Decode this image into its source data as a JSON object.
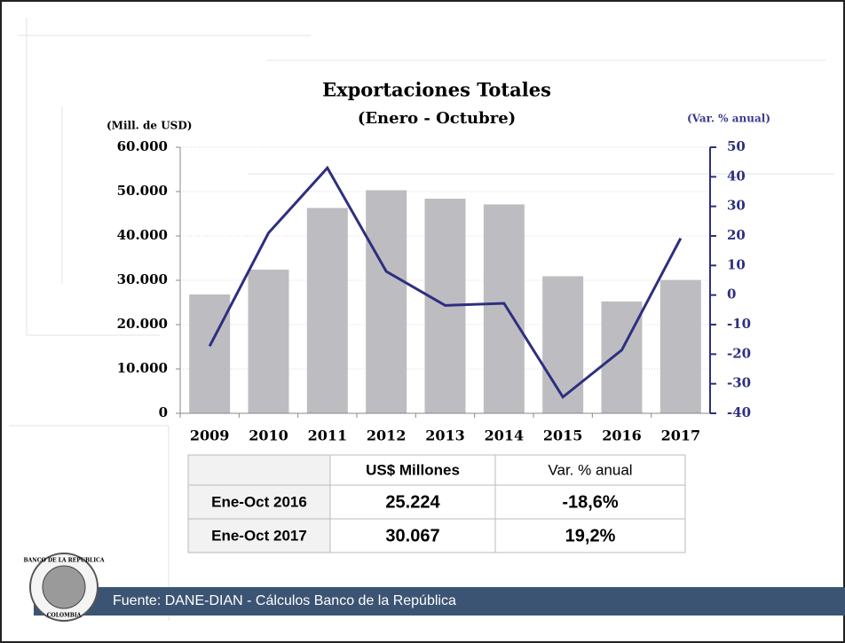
{
  "chart_data": {
    "type": "bar_line",
    "title": "Exportaciones Totales",
    "subtitle": "(Enero - Octubre)",
    "ylabel": "(Mill. de USD)",
    "y2label": "(Var. % anual)",
    "categories": [
      "2009",
      "2010",
      "2011",
      "2012",
      "2013",
      "2014",
      "2015",
      "2016",
      "2017"
    ],
    "series": [
      {
        "type": "bar",
        "color": "#bdbdc1",
        "values": [
          26800,
          32400,
          46300,
          50300,
          48400,
          47100,
          30900,
          25224,
          30067
        ]
      },
      {
        "type": "line",
        "axis": "y2",
        "color": "#2e2f7f",
        "values": [
          -17.3,
          21,
          43,
          8,
          -3.5,
          -2.8,
          -34.5,
          -18.6,
          19.2
        ]
      }
    ],
    "ylim": [
      0,
      60000
    ],
    "yticks": [
      0,
      {
        "value": 10000,
        "label": "10.000"
      },
      {
        "value": 20000,
        "label": "20.000"
      },
      {
        "value": 30000,
        "label": "30.000"
      },
      {
        "value": 40000,
        "label": "40.000"
      },
      {
        "value": 50000,
        "label": "50.000"
      },
      {
        "value": 60000,
        "label": "60.000"
      }
    ],
    "y2lim": [
      -40,
      50
    ],
    "y2ticks": [
      -40,
      -30,
      -20,
      -10,
      0,
      10,
      20,
      30,
      40,
      50
    ],
    "grid": true
  },
  "table": {
    "header": [
      "US$ Millones",
      "Var. % anual"
    ],
    "rows": [
      [
        "Ene-Oct 2016",
        "25.224",
        "-18,6%"
      ],
      [
        "Ene-Oct 2017",
        "30.067",
        "19,2%"
      ]
    ]
  },
  "logo": {
    "top": "BANCO DE LA REPUBLICA",
    "bottom": "COLOMBIA"
  },
  "footer": "Fuente: DANE-DIAN - Cálculos Banco de la República"
}
